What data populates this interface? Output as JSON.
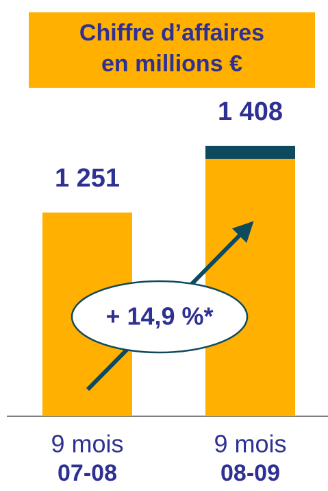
{
  "chart_data": {
    "type": "bar",
    "title": [
      "Chiffre d’affaires",
      "en millions €"
    ],
    "categories": [
      [
        "9 mois",
        "07-08"
      ],
      [
        "9 mois",
        "08-09"
      ]
    ],
    "values": [
      1251,
      1408
    ],
    "value_labels": [
      "1 251",
      "1 408"
    ],
    "color": "#ffb000",
    "ylim": [
      770,
      1526
    ],
    "annotation": "+ 14,9 %*"
  }
}
